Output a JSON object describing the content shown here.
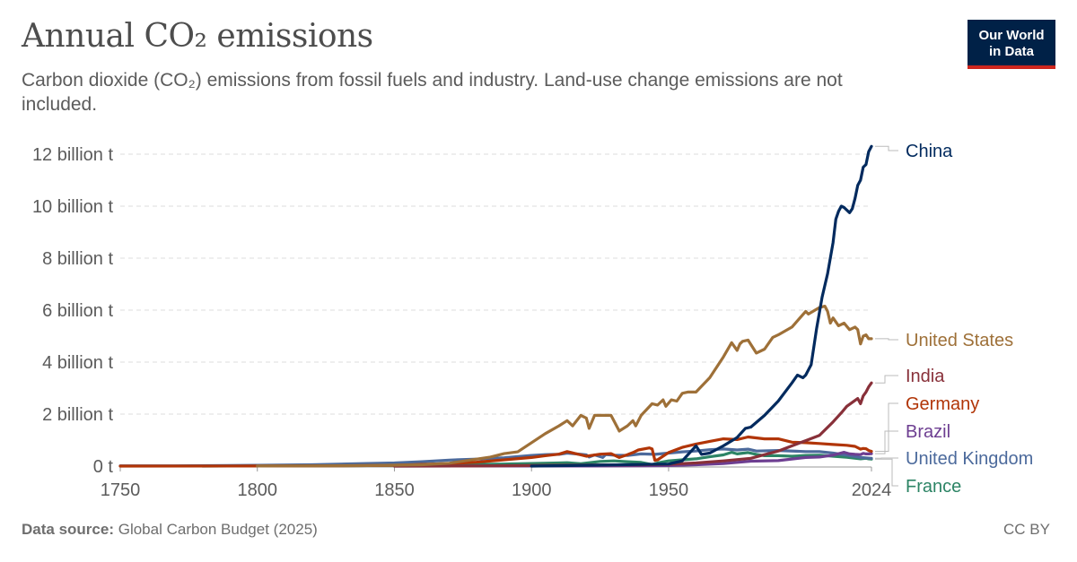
{
  "title": "Annual CO₂ emissions",
  "subtitle": "Carbon dioxide (CO₂) emissions from fossil fuels and industry. Land-use change emissions are not included.",
  "logo": {
    "line1": "Our World",
    "line2": "in Data"
  },
  "source_label": "Data source:",
  "source_text": "Global Carbon Budget (2025)",
  "license": "CC BY",
  "chart_data": {
    "type": "line",
    "xlabel": "",
    "ylabel": "",
    "xlim": [
      1750,
      2024
    ],
    "ylim": [
      0,
      12
    ],
    "x_ticks": [
      {
        "value": 1750,
        "label": "1750"
      },
      {
        "value": 1800,
        "label": "1800"
      },
      {
        "value": 1850,
        "label": "1850"
      },
      {
        "value": 1900,
        "label": "1900"
      },
      {
        "value": 1950,
        "label": "1950"
      },
      {
        "value": 2024,
        "label": "2024"
      }
    ],
    "y_ticks": [
      {
        "value": 0,
        "label": "0 t"
      },
      {
        "value": 2,
        "label": "2 billion t"
      },
      {
        "value": 4,
        "label": "4 billion t"
      },
      {
        "value": 6,
        "label": "6 billion t"
      },
      {
        "value": 8,
        "label": "8 billion t"
      },
      {
        "value": 10,
        "label": "10 billion t"
      },
      {
        "value": 12,
        "label": "12 billion t"
      }
    ],
    "grid": "horizontal dashed",
    "series": [
      {
        "name": "China",
        "color": "#012a5e",
        "points": [
          [
            1900,
            0
          ],
          [
            1950,
            0.08
          ],
          [
            1955,
            0.2
          ],
          [
            1960,
            0.78
          ],
          [
            1962,
            0.45
          ],
          [
            1965,
            0.5
          ],
          [
            1970,
            0.78
          ],
          [
            1975,
            1.1
          ],
          [
            1978,
            1.45
          ],
          [
            1980,
            1.5
          ],
          [
            1985,
            1.95
          ],
          [
            1990,
            2.5
          ],
          [
            1995,
            3.2
          ],
          [
            1997,
            3.5
          ],
          [
            1999,
            3.4
          ],
          [
            2000,
            3.5
          ],
          [
            2002,
            3.9
          ],
          [
            2004,
            5.3
          ],
          [
            2006,
            6.5
          ],
          [
            2008,
            7.4
          ],
          [
            2010,
            8.6
          ],
          [
            2011,
            9.5
          ],
          [
            2012,
            9.8
          ],
          [
            2013,
            10.0
          ],
          [
            2014,
            9.95
          ],
          [
            2015,
            9.85
          ],
          [
            2016,
            9.75
          ],
          [
            2017,
            9.9
          ],
          [
            2018,
            10.3
          ],
          [
            2019,
            10.8
          ],
          [
            2020,
            11.0
          ],
          [
            2021,
            11.5
          ],
          [
            2022,
            11.6
          ],
          [
            2023,
            12.1
          ],
          [
            2024,
            12.3
          ]
        ]
      },
      {
        "name": "United States",
        "color": "#9e7038",
        "points": [
          [
            1800,
            0.003
          ],
          [
            1820,
            0.01
          ],
          [
            1840,
            0.02
          ],
          [
            1860,
            0.05
          ],
          [
            1870,
            0.11
          ],
          [
            1880,
            0.27
          ],
          [
            1885,
            0.35
          ],
          [
            1890,
            0.48
          ],
          [
            1895,
            0.55
          ],
          [
            1900,
            0.9
          ],
          [
            1905,
            1.25
          ],
          [
            1910,
            1.55
          ],
          [
            1913,
            1.75
          ],
          [
            1915,
            1.55
          ],
          [
            1918,
            1.95
          ],
          [
            1920,
            1.85
          ],
          [
            1921,
            1.45
          ],
          [
            1923,
            1.95
          ],
          [
            1926,
            1.95
          ],
          [
            1929,
            1.95
          ],
          [
            1930,
            1.75
          ],
          [
            1932,
            1.35
          ],
          [
            1935,
            1.55
          ],
          [
            1937,
            1.75
          ],
          [
            1938,
            1.55
          ],
          [
            1940,
            1.95
          ],
          [
            1944,
            2.4
          ],
          [
            1946,
            2.35
          ],
          [
            1948,
            2.55
          ],
          [
            1949,
            2.3
          ],
          [
            1951,
            2.55
          ],
          [
            1953,
            2.5
          ],
          [
            1955,
            2.8
          ],
          [
            1957,
            2.85
          ],
          [
            1960,
            2.85
          ],
          [
            1965,
            3.4
          ],
          [
            1970,
            4.2
          ],
          [
            1973,
            4.75
          ],
          [
            1975,
            4.45
          ],
          [
            1976,
            4.7
          ],
          [
            1977,
            4.8
          ],
          [
            1979,
            4.85
          ],
          [
            1982,
            4.35
          ],
          [
            1985,
            4.5
          ],
          [
            1988,
            4.95
          ],
          [
            1990,
            5.05
          ],
          [
            1995,
            5.35
          ],
          [
            2000,
            5.95
          ],
          [
            2001,
            5.85
          ],
          [
            2005,
            6.1
          ],
          [
            2007,
            6.15
          ],
          [
            2008,
            5.95
          ],
          [
            2009,
            5.5
          ],
          [
            2010,
            5.7
          ],
          [
            2012,
            5.4
          ],
          [
            2014,
            5.5
          ],
          [
            2016,
            5.25
          ],
          [
            2018,
            5.35
          ],
          [
            2019,
            5.25
          ],
          [
            2020,
            4.7
          ],
          [
            2021,
            5.0
          ],
          [
            2022,
            5.05
          ],
          [
            2023,
            4.9
          ],
          [
            2024,
            4.9
          ]
        ]
      },
      {
        "name": "India",
        "color": "#883039",
        "points": [
          [
            1850,
            0
          ],
          [
            1880,
            0.005
          ],
          [
            1900,
            0.02
          ],
          [
            1920,
            0.04
          ],
          [
            1940,
            0.05
          ],
          [
            1950,
            0.07
          ],
          [
            1960,
            0.12
          ],
          [
            1970,
            0.2
          ],
          [
            1980,
            0.3
          ],
          [
            1990,
            0.58
          ],
          [
            2000,
            0.98
          ],
          [
            2005,
            1.18
          ],
          [
            2010,
            1.7
          ],
          [
            2013,
            2.05
          ],
          [
            2015,
            2.3
          ],
          [
            2017,
            2.45
          ],
          [
            2019,
            2.6
          ],
          [
            2020,
            2.4
          ],
          [
            2021,
            2.7
          ],
          [
            2022,
            2.85
          ],
          [
            2023,
            3.05
          ],
          [
            2024,
            3.2
          ]
        ]
      },
      {
        "name": "Germany",
        "color": "#b13507",
        "points": [
          [
            1750,
            0
          ],
          [
            1800,
            0.002
          ],
          [
            1830,
            0.01
          ],
          [
            1850,
            0.03
          ],
          [
            1870,
            0.1
          ],
          [
            1880,
            0.15
          ],
          [
            1890,
            0.24
          ],
          [
            1900,
            0.33
          ],
          [
            1905,
            0.4
          ],
          [
            1910,
            0.46
          ],
          [
            1913,
            0.56
          ],
          [
            1918,
            0.43
          ],
          [
            1920,
            0.38
          ],
          [
            1925,
            0.46
          ],
          [
            1929,
            0.48
          ],
          [
            1932,
            0.33
          ],
          [
            1935,
            0.44
          ],
          [
            1937,
            0.52
          ],
          [
            1939,
            0.62
          ],
          [
            1943,
            0.7
          ],
          [
            1944,
            0.66
          ],
          [
            1945,
            0.22
          ],
          [
            1946,
            0.24
          ],
          [
            1950,
            0.52
          ],
          [
            1955,
            0.72
          ],
          [
            1960,
            0.85
          ],
          [
            1965,
            0.95
          ],
          [
            1970,
            1.05
          ],
          [
            1975,
            1.02
          ],
          [
            1979,
            1.12
          ],
          [
            1985,
            1.05
          ],
          [
            1990,
            1.05
          ],
          [
            1995,
            0.92
          ],
          [
            2000,
            0.9
          ],
          [
            2005,
            0.87
          ],
          [
            2010,
            0.83
          ],
          [
            2015,
            0.8
          ],
          [
            2018,
            0.76
          ],
          [
            2020,
            0.65
          ],
          [
            2021,
            0.68
          ],
          [
            2022,
            0.67
          ],
          [
            2023,
            0.6
          ],
          [
            2024,
            0.57
          ]
        ]
      },
      {
        "name": "Brazil",
        "color": "#6d3e91",
        "points": [
          [
            1850,
            0
          ],
          [
            1900,
            0.002
          ],
          [
            1920,
            0.005
          ],
          [
            1940,
            0.01
          ],
          [
            1950,
            0.02
          ],
          [
            1960,
            0.05
          ],
          [
            1970,
            0.1
          ],
          [
            1980,
            0.19
          ],
          [
            1990,
            0.21
          ],
          [
            2000,
            0.33
          ],
          [
            2005,
            0.35
          ],
          [
            2010,
            0.42
          ],
          [
            2014,
            0.53
          ],
          [
            2016,
            0.47
          ],
          [
            2018,
            0.45
          ],
          [
            2020,
            0.44
          ],
          [
            2021,
            0.49
          ],
          [
            2022,
            0.47
          ],
          [
            2023,
            0.47
          ],
          [
            2024,
            0.48
          ]
        ]
      },
      {
        "name": "United Kingdom",
        "color": "#4c6a9c",
        "points": [
          [
            1750,
            0.009
          ],
          [
            1770,
            0.011
          ],
          [
            1800,
            0.03
          ],
          [
            1820,
            0.05
          ],
          [
            1840,
            0.1
          ],
          [
            1850,
            0.12
          ],
          [
            1860,
            0.17
          ],
          [
            1870,
            0.23
          ],
          [
            1880,
            0.27
          ],
          [
            1890,
            0.32
          ],
          [
            1900,
            0.41
          ],
          [
            1905,
            0.44
          ],
          [
            1910,
            0.45
          ],
          [
            1913,
            0.5
          ],
          [
            1918,
            0.45
          ],
          [
            1920,
            0.43
          ],
          [
            1921,
            0.35
          ],
          [
            1923,
            0.43
          ],
          [
            1926,
            0.33
          ],
          [
            1927,
            0.44
          ],
          [
            1930,
            0.42
          ],
          [
            1935,
            0.41
          ],
          [
            1940,
            0.47
          ],
          [
            1945,
            0.45
          ],
          [
            1950,
            0.5
          ],
          [
            1955,
            0.55
          ],
          [
            1960,
            0.58
          ],
          [
            1965,
            0.63
          ],
          [
            1970,
            0.66
          ],
          [
            1975,
            0.62
          ],
          [
            1979,
            0.65
          ],
          [
            1982,
            0.58
          ],
          [
            1990,
            0.6
          ],
          [
            2000,
            0.56
          ],
          [
            2005,
            0.56
          ],
          [
            2010,
            0.5
          ],
          [
            2015,
            0.42
          ],
          [
            2020,
            0.33
          ],
          [
            2024,
            0.3
          ]
        ]
      },
      {
        "name": "France",
        "color": "#2c8465",
        "points": [
          [
            1780,
            0
          ],
          [
            1800,
            0.005
          ],
          [
            1830,
            0.01
          ],
          [
            1850,
            0.03
          ],
          [
            1870,
            0.05
          ],
          [
            1890,
            0.08
          ],
          [
            1900,
            0.1
          ],
          [
            1910,
            0.12
          ],
          [
            1913,
            0.13
          ],
          [
            1918,
            0.09
          ],
          [
            1925,
            0.18
          ],
          [
            1930,
            0.2
          ],
          [
            1935,
            0.17
          ],
          [
            1940,
            0.14
          ],
          [
            1944,
            0.06
          ],
          [
            1946,
            0.12
          ],
          [
            1950,
            0.2
          ],
          [
            1955,
            0.24
          ],
          [
            1960,
            0.28
          ],
          [
            1965,
            0.36
          ],
          [
            1970,
            0.43
          ],
          [
            1973,
            0.53
          ],
          [
            1975,
            0.47
          ],
          [
            1979,
            0.52
          ],
          [
            1982,
            0.45
          ],
          [
            1985,
            0.4
          ],
          [
            1990,
            0.4
          ],
          [
            1995,
            0.38
          ],
          [
            2000,
            0.41
          ],
          [
            2005,
            0.42
          ],
          [
            2010,
            0.38
          ],
          [
            2015,
            0.34
          ],
          [
            2020,
            0.28
          ],
          [
            2022,
            0.3
          ],
          [
            2023,
            0.28
          ],
          [
            2024,
            0.27
          ]
        ]
      }
    ]
  }
}
